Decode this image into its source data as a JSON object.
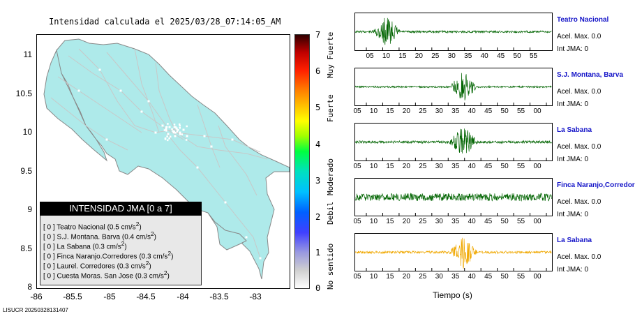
{
  "map": {
    "title": "Intensidad calculada el 2025/03/28_07:14:05_AM",
    "y_ticks": [
      "11",
      "10.5",
      "10",
      "9.5",
      "9",
      "8.5",
      "8"
    ],
    "x_ticks": [
      "-86",
      "-85.5",
      "-85",
      "-84.5",
      "-84",
      "-83.5",
      "-83"
    ],
    "land_color": "#aeeaea"
  },
  "legend": {
    "header": "INTENSIDAD JMA [0 a 7]",
    "items": [
      {
        "level": "[ 0 ]",
        "name": "Teatro Nacional",
        "accel": "(0.5 cm/s",
        "sup": "2",
        "close": ")"
      },
      {
        "level": "[ 0 ]",
        "name": "S.J. Montana. Barva",
        "accel": "(0.4 cm/s",
        "sup": "2",
        "close": ")"
      },
      {
        "level": "[ 0 ]",
        "name": "La Sabana",
        "accel": "(0.3 cm/s",
        "sup": "2",
        "close": ")"
      },
      {
        "level": "[ 0 ]",
        "name": "Finca Naranjo.Corredores",
        "accel": "(0.3 cm/s",
        "sup": "2",
        "close": ")"
      },
      {
        "level": "[ 0 ]",
        "name": "Laurel. Corredores",
        "accel": "(0.3 cm/s",
        "sup": "2",
        "close": ")"
      },
      {
        "level": "[ 0 ]",
        "name": "Cuesta Moras. San Jose",
        "accel": "(0.3 cm/s",
        "sup": "2",
        "close": ")"
      }
    ]
  },
  "colorbar": {
    "numbers": [
      "7",
      "6",
      "5",
      "4",
      "3",
      "2",
      "1",
      "0"
    ],
    "words": [
      "Muy Fuerte",
      "Fuerte",
      "Moderado",
      "Debil",
      "No sentido"
    ]
  },
  "footer": "LISUCR 20250328131407",
  "traces": {
    "xlabel": "Tiempo (s)",
    "stations": [
      {
        "name": "Teatro Nacional",
        "acel": "Acel. Max. 0.0",
        "int": "Int JMA: 0",
        "color": "#006400",
        "ticks": [
          "05",
          "10",
          "15",
          "20",
          "25",
          "30",
          "35",
          "40",
          "45",
          "50",
          "55"
        ],
        "burst": 0.16,
        "base": 0.25
      },
      {
        "name": "S.J. Montana, Barva",
        "acel": "Acel. Max. 0.0",
        "int": "Int JMA: 0",
        "color": "#006400",
        "ticks": [
          "05",
          "10",
          "15",
          "20",
          "25",
          "30",
          "35",
          "40",
          "45",
          "50",
          "55",
          "00"
        ],
        "burst": 0.55,
        "base": 0.2
      },
      {
        "name": "La Sabana",
        "acel": "Acel. Max. 0.0",
        "int": "Int JMA: 0",
        "color": "#006400",
        "ticks": [
          "05",
          "10",
          "15",
          "20",
          "25",
          "30",
          "35",
          "40",
          "45",
          "50",
          "55",
          "00"
        ],
        "burst": 0.55,
        "base": 0.3
      },
      {
        "name": "Finca Naranjo,Corredor",
        "acel": "Acel. Max. 0.0",
        "int": "Int JMA: 0",
        "color": "#006400",
        "ticks": [
          "05",
          "10",
          "15",
          "20",
          "25",
          "30",
          "35",
          "40",
          "45",
          "50",
          "55",
          "00"
        ],
        "burst": -1,
        "base": 0.9
      },
      {
        "name": "La Sabana",
        "acel": "Acel. Max. 0.0",
        "int": "Int JMA: 0",
        "color": "#f0a800",
        "ticks": [
          "05",
          "10",
          "15",
          "20",
          "25",
          "30",
          "35",
          "40",
          "45",
          "50",
          "55",
          "00"
        ],
        "burst": 0.55,
        "base": 0.3
      }
    ]
  }
}
